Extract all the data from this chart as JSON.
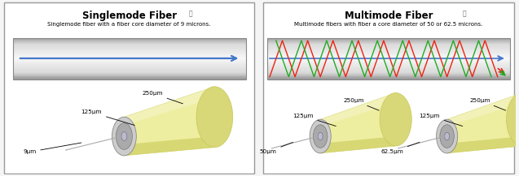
{
  "singlemode_title": "Singlemode Fiber",
  "singlemode_title_icon": "⎘",
  "singlemode_subtitle": "Singlemode fiber with a fiber core diameter of 9 microns.",
  "multimode_title": "Multimode Fiber",
  "multimode_title_icon": "⎘",
  "multimode_subtitle": "Multimode fibers with fiber a core diameter of 50 or 62.5 microns.",
  "bg_color": "#f5f5f5",
  "panel_bg": "#ffffff",
  "box_gray_dark": "#b0b0b0",
  "box_gray_mid": "#d8d8d8",
  "box_gray_light": "#efefef",
  "blue_color": "#4477cc",
  "red_color": "#ee2211",
  "green_color": "#22aa22",
  "yellow_cyl": "#eeeea0",
  "yellow_cyl_dark": "#d8d878",
  "yellow_cyl_darker": "#c8c858",
  "gray_face": "#d0d0d0",
  "gray_inner": "#aaaaaa",
  "cable_face_outer": "#cccccc",
  "cable_face_inner": "#aaaaaa",
  "cable_face_core": "#bbbbcc"
}
